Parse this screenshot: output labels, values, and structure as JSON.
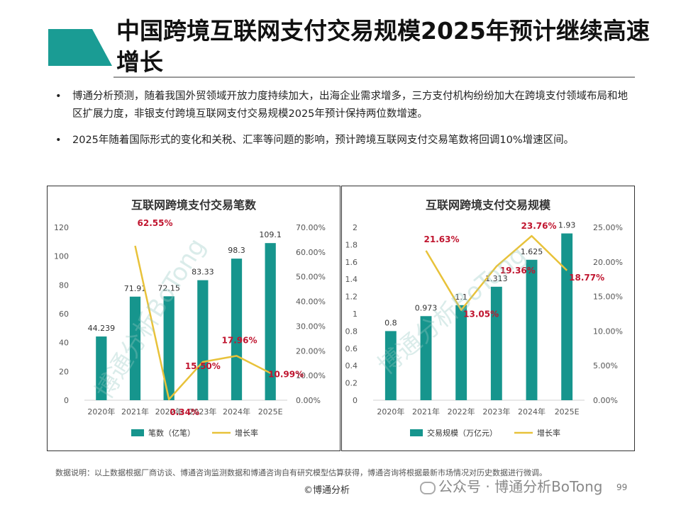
{
  "title": "中国跨境互联网支付交易规模2025年预计继续高速增长",
  "bullets": [
    "博通分析预测，随着我国外贸领域开放力度持续加大，出海企业需求增多，三方支付机构纷纷加大在跨境支付领域布局和地区扩展力度，非银支付跨境互联网支付交易规模2025年预计保持两位数增速。",
    "2025年随着国际形式的变化和关税、汇率等问题的影响，预计跨境互联网支付交易笔数将回调10%增速区间。"
  ],
  "bullet_symbol": "•",
  "colors": {
    "accent": "#1a9c94",
    "bar": "#16958d",
    "line": "#e8c23a",
    "label_red": "#c0152f"
  },
  "watermark_text": "博通分析BoTong",
  "chart_data": [
    {
      "type": "bar",
      "title": "互联网跨境支付交易笔数",
      "categories": [
        "2020年",
        "2021年",
        "2022年",
        "2023年",
        "2024年",
        "2025E"
      ],
      "series": [
        {
          "name": "笔数（亿笔）",
          "type": "bar",
          "axis": "left",
          "values": [
            44.239,
            71.91,
            72.15,
            83.33,
            98.3,
            109.1
          ],
          "labels": [
            "44.239",
            "71.91",
            "72.15",
            "83.33",
            "98.3",
            "109.1"
          ]
        },
        {
          "name": "增长率",
          "type": "line",
          "axis": "right",
          "values": [
            null,
            62.55,
            0.34,
            15.5,
            17.96,
            10.99
          ],
          "labels": [
            "",
            "62.55%",
            "0.34%",
            "15.50%",
            "17.96%",
            "10.99%"
          ]
        }
      ],
      "left_ticks": [
        "0",
        "20",
        "40",
        "60",
        "80",
        "100",
        "120"
      ],
      "right_ticks": [
        "0.00%",
        "10.00%",
        "20.00%",
        "30.00%",
        "40.00%",
        "50.00%",
        "60.00%",
        "70.00%"
      ],
      "ylim_left": [
        0,
        120
      ],
      "ylim_right": [
        0,
        70
      ],
      "legend_position": "bottom",
      "grid": false
    },
    {
      "type": "bar",
      "title": "互联网跨境支付交易规模",
      "categories": [
        "2020年",
        "2021年",
        "2022年",
        "2023年",
        "2024年",
        "2025E"
      ],
      "series": [
        {
          "name": "交易规模（万亿元）",
          "type": "bar",
          "axis": "left",
          "values": [
            0.8,
            0.973,
            1.1,
            1.313,
            1.625,
            1.93
          ],
          "labels": [
            "0.8",
            "0.973",
            "1.1",
            "1.313",
            "1.625",
            "1.93"
          ]
        },
        {
          "name": "增长率",
          "type": "line",
          "axis": "right",
          "values": [
            null,
            21.63,
            13.05,
            19.36,
            23.76,
            18.77
          ],
          "labels": [
            "",
            "21.63%",
            "13.05%",
            "19.36%",
            "23.76%",
            "18.77%"
          ]
        }
      ],
      "left_ticks": [
        "0",
        "0.2",
        "0.4",
        "0.6",
        "0.8",
        "1",
        "1.2",
        "1.4",
        "1.6",
        "1.8",
        "2"
      ],
      "right_ticks": [
        "0.00%",
        "5.00%",
        "10.00%",
        "15.00%",
        "20.00%",
        "25.00%"
      ],
      "ylim_left": [
        0,
        2
      ],
      "ylim_right": [
        0,
        25
      ],
      "legend_position": "bottom",
      "grid": false
    }
  ],
  "footer": {
    "note": "数据说明：以上数据根据厂商访谈、博通咨询监测数据和博通咨询自有研究模型估算获得，博通咨询将根据最新市场情况对历史数据进行微调。",
    "copyright": "©博通分析",
    "page_number": "99",
    "wechat_label": "公众号 · 博通分析BoTong"
  }
}
